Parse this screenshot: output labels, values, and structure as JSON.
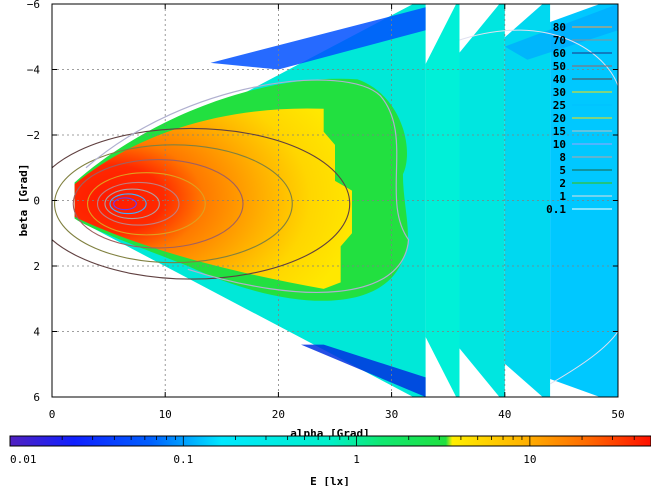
{
  "chart_data": {
    "type": "heatmap",
    "xlabel": "alpha [Grad]",
    "ylabel": "beta [Grad]",
    "colorbar_label": "E [lx]",
    "xlim": [
      0,
      50
    ],
    "ylim": [
      -6,
      6
    ],
    "x_ticks": [
      0,
      10,
      20,
      30,
      40,
      50
    ],
    "y_ticks": [
      -6,
      -4,
      -2,
      0,
      2,
      4,
      6
    ],
    "y_axis_inverted": true,
    "grid": true,
    "colorbar_scale": "log",
    "colorbar_range": [
      0.01,
      50
    ],
    "colorbar_ticks": [
      {
        "value": 0.01,
        "label": "0.01"
      },
      {
        "value": 0.1,
        "label": "0.1"
      },
      {
        "value": 1,
        "label": "1"
      },
      {
        "value": 10,
        "label": "10"
      }
    ],
    "contour_levels": [
      "80",
      "70",
      "60",
      "50",
      "40",
      "30",
      "25",
      "20",
      "15",
      "10",
      "8",
      "5",
      "2",
      "1",
      "0.1"
    ],
    "legend_position": "right",
    "peak": {
      "alpha": 6,
      "beta": 0.2
    },
    "bands": [
      {
        "x_min": 2,
        "x_max": 33,
        "beta_half_width_at_x_max": 6
      },
      {
        "x_min": 33,
        "x_max": 36,
        "beta_half_width_at_x_max": 6
      },
      {
        "x_min": 36,
        "x_max": 40,
        "beta_half_width_at_x_max": 6
      },
      {
        "x_min": 40,
        "x_max": 44,
        "beta_half_width_at_x_max": 6
      },
      {
        "x_min": 44,
        "x_max": 50,
        "beta_half_width_at_x_max": 6
      }
    ],
    "colors": {
      "very_high": "#ff1a00",
      "high": "#ff7a00",
      "mid_high": "#ffd000",
      "mid": "#22e040",
      "low": "#00f0d0",
      "very_low": "#0040ff"
    }
  }
}
